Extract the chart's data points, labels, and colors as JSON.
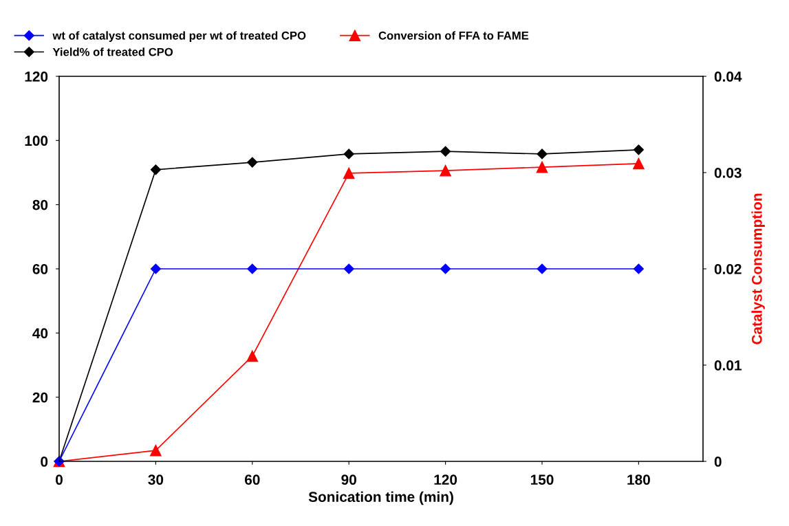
{
  "chart_data": {
    "type": "line",
    "xlabel": "Sonication time (min)",
    "y2label": "Catalyst Consumption",
    "x": [
      0,
      30,
      60,
      90,
      120,
      150,
      180
    ],
    "series": [
      {
        "name": "wt of catalyst consumed per wt of treated CPO",
        "color": "#0000ff",
        "marker": "diamond",
        "axis": "y2",
        "values": [
          0,
          0.02,
          0.02,
          0.02,
          0.02,
          0.02,
          0.02
        ]
      },
      {
        "name": "Yield% of treated CPO",
        "color": "#000000",
        "marker": "diamond",
        "values": [
          0,
          90.9,
          93.2,
          95.8,
          96.6,
          95.8,
          97.1
        ]
      },
      {
        "name": "Conversion of FFA to FAME",
        "color": "#ff0000",
        "marker": "triangle",
        "values": [
          0,
          3.4,
          32.8,
          89.8,
          90.6,
          91.7,
          92.8
        ]
      }
    ],
    "xlim": [
      0,
      200
    ],
    "xticks": [
      0,
      30,
      60,
      90,
      120,
      150,
      180
    ],
    "ylim": [
      0,
      120
    ],
    "yticks": [
      0,
      20,
      40,
      60,
      80,
      100,
      120
    ],
    "y2lim": [
      0,
      0.04
    ],
    "y2ticks": [
      0,
      0.01,
      0.02,
      0.03,
      0.04
    ],
    "grid": false,
    "legend": "top",
    "line_style": "solid"
  }
}
